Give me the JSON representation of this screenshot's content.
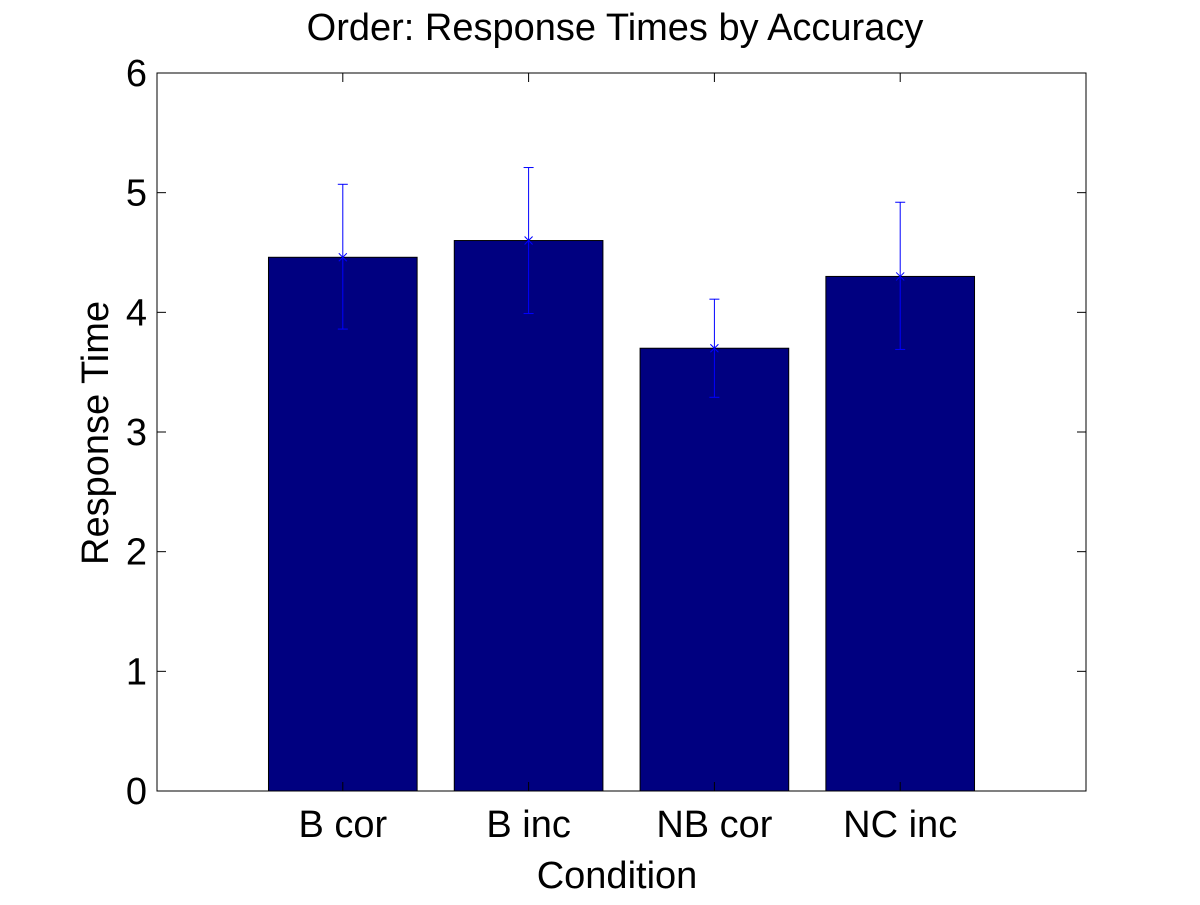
{
  "chart_data": {
    "type": "bar",
    "title": "Order: Response Times by Accuracy",
    "xlabel": "Condition",
    "ylabel": "Response Time",
    "categories": [
      "B cor",
      "B inc",
      "NB cor",
      "NC inc"
    ],
    "values": [
      4.46,
      4.6,
      3.7,
      4.3
    ],
    "error_low": [
      3.86,
      3.99,
      3.29,
      3.69
    ],
    "error_high": [
      5.07,
      5.21,
      4.11,
      4.92
    ],
    "ylim": [
      0,
      6
    ],
    "yticks": [
      0,
      1,
      2,
      3,
      4,
      5,
      6
    ],
    "bar_color": "#000080",
    "error_color": "#0000ff",
    "grid": false
  }
}
